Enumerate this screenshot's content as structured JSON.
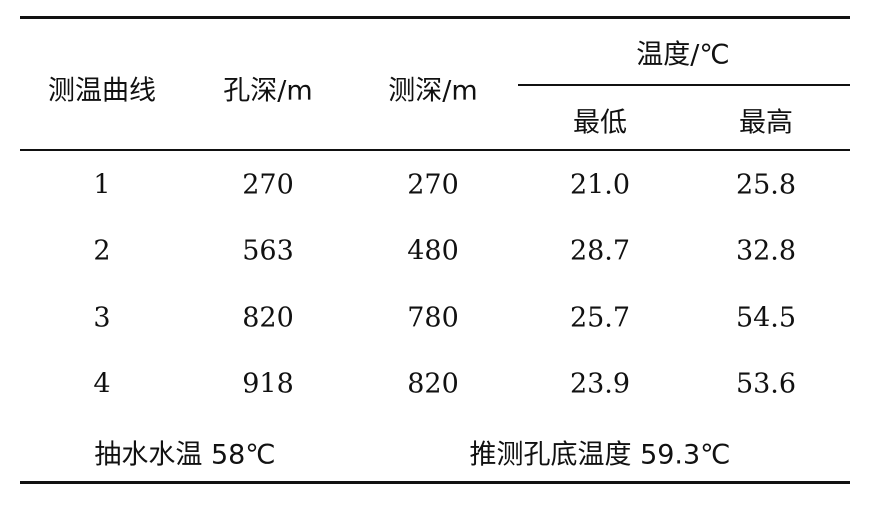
{
  "headers": {
    "curve": "测温曲线",
    "hole_depth": "孔深/m",
    "measure_depth": "测深/m",
    "temperature": "温度/℃",
    "min": "最低",
    "max": "最高"
  },
  "rows": [
    [
      "1",
      "270",
      "270",
      "21.0",
      "25.8"
    ],
    [
      "2",
      "563",
      "480",
      "28.7",
      "32.8"
    ],
    [
      "3",
      "820",
      "780",
      "25.7",
      "54.5"
    ],
    [
      "4",
      "918",
      "820",
      "23.9",
      "53.6"
    ]
  ],
  "footer": {
    "pump_water_temp": "抽水水温 58℃",
    "inferred_bottom_temp": "推测孔底温度 59.3℃"
  }
}
